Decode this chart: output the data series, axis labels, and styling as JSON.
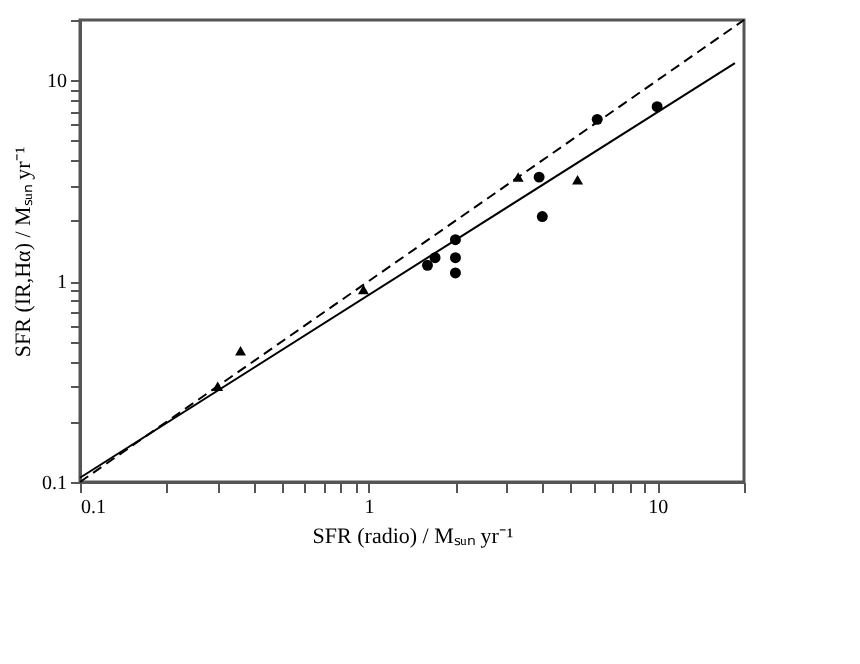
{
  "chart_data": {
    "type": "scatter",
    "xlabel": "SFR (radio)  / Mₛᵤₙ yr⁻¹",
    "ylabel": "SFR (IR,Hα)  / Mₛᵤₙ yr⁻¹",
    "log": "xy",
    "grid": false,
    "xlim": [
      0.1,
      20
    ],
    "ylim": [
      0.1,
      20
    ],
    "xticks": [
      0.1,
      {
        "value": 0.2,
        "label": null
      },
      {
        "value": 0.3,
        "label": null
      },
      {
        "value": 0.4,
        "label": null
      },
      {
        "value": 0.5,
        "label": null
      },
      {
        "value": 0.6,
        "label": null
      },
      {
        "value": 0.7,
        "label": null
      },
      {
        "value": 0.8,
        "label": null
      },
      {
        "value": 0.9,
        "label": null
      },
      1,
      {
        "value": 2,
        "label": null
      },
      {
        "value": 3,
        "label": null
      },
      {
        "value": 4,
        "label": null
      },
      {
        "value": 5,
        "label": null
      },
      {
        "value": 6,
        "label": null
      },
      {
        "value": 7,
        "label": null
      },
      {
        "value": 8,
        "label": null
      },
      {
        "value": 9,
        "label": null
      },
      10,
      {
        "value": 20,
        "label": null
      }
    ],
    "yticks": [
      0.1,
      {
        "value": 0.2,
        "label": null
      },
      {
        "value": 0.3,
        "label": null
      },
      {
        "value": 0.4,
        "label": null
      },
      {
        "value": 0.5,
        "label": null
      },
      {
        "value": 0.6,
        "label": null
      },
      {
        "value": 0.7,
        "label": null
      },
      {
        "value": 0.8,
        "label": null
      },
      {
        "value": 0.9,
        "label": null
      },
      1,
      {
        "value": 2,
        "label": null
      },
      {
        "value": 3,
        "label": null
      },
      {
        "value": 4,
        "label": null
      },
      {
        "value": 5,
        "label": null
      },
      {
        "value": 6,
        "label": null
      },
      {
        "value": 7,
        "label": null
      },
      {
        "value": 8,
        "label": null
      },
      {
        "value": 9,
        "label": null
      },
      10,
      {
        "value": 20,
        "label": null
      }
    ],
    "series": [
      {
        "type": "line",
        "color": "#000000",
        "line_style": "dashed",
        "marker": "none",
        "x": [
          0.1,
          20
        ],
        "values": [
          0.1,
          20
        ]
      },
      {
        "type": "line",
        "color": "#000000",
        "line_style": "solid",
        "marker": "none",
        "x": [
          0.1,
          18.6
        ],
        "values": [
          0.105,
          12.2
        ]
      },
      {
        "color": "#000000",
        "marker": "circle",
        "x": [
          1.6,
          1.7,
          2.0,
          2.0,
          2.0,
          3.9,
          4.0,
          6.2,
          10
        ],
        "values": [
          1.2,
          1.31,
          1.61,
          1.31,
          1.1,
          3.3,
          2.1,
          6.4,
          7.4
        ]
      },
      {
        "color": "#000000",
        "marker": "triangle",
        "x": [
          0.3,
          0.36,
          0.96,
          3.3,
          5.3
        ],
        "values": [
          0.3,
          0.45,
          0.91,
          3.3,
          3.2
        ]
      }
    ]
  }
}
